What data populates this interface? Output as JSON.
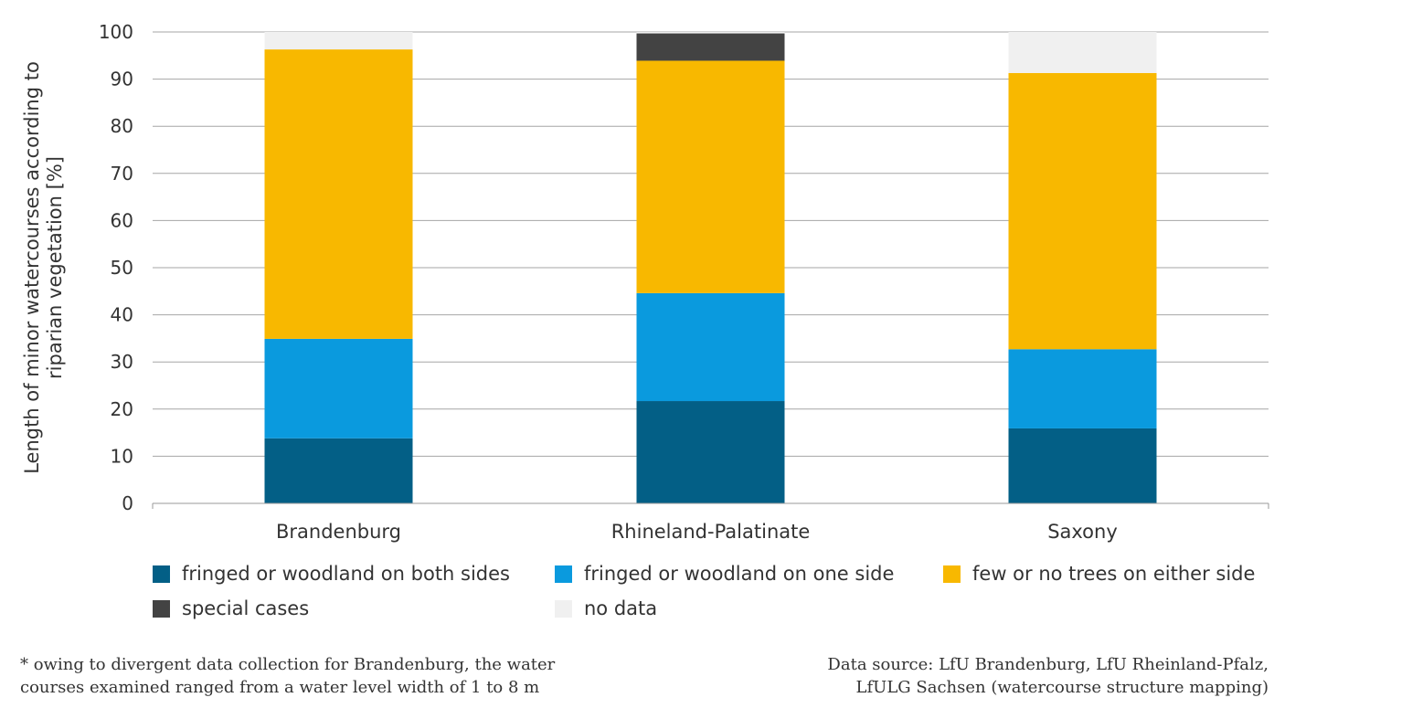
{
  "chart_data": {
    "type": "bar",
    "stacked": true,
    "categories": [
      "Brandenburg",
      "Rhineland-Palatinate",
      "Saxony"
    ],
    "series": [
      {
        "name": "fringed or woodland on both sides",
        "color": "#035f86",
        "values": [
          13.8,
          21.7,
          15.9
        ]
      },
      {
        "name": "fringed or woodland on one side",
        "color": "#0a9ade",
        "values": [
          21.1,
          22.9,
          16.8
        ]
      },
      {
        "name": "few or no trees on either side",
        "color": "#f8b800",
        "values": [
          61.4,
          49.3,
          58.6
        ]
      },
      {
        "name": "special cases",
        "color": "#434343",
        "values": [
          0,
          5.8,
          0
        ]
      },
      {
        "name": "no data",
        "color": "#f0f0f0",
        "values": [
          3.7,
          0.3,
          8.7
        ]
      }
    ],
    "ylim": [
      0,
      100
    ],
    "yticks": [
      "0",
      "10",
      "20",
      "30",
      "40",
      "50",
      "60",
      "70",
      "80",
      "90",
      "100"
    ],
    "ylabel_lines": [
      "Length of minor watercourses according to",
      "riparian vegetation [%]"
    ],
    "xlabel": "",
    "grid": true,
    "legend_position": "bottom"
  },
  "footnote_lines": [
    "* owing to divergent data collection for Brandenburg, the water",
    "courses examined ranged from a water level width of 1 to 8 m"
  ],
  "source_lines": [
    "Data source: LfU Brandenburg, LfU Rheinland-Pfalz,",
    "LfULG Sachsen (watercourse structure mapping)"
  ]
}
